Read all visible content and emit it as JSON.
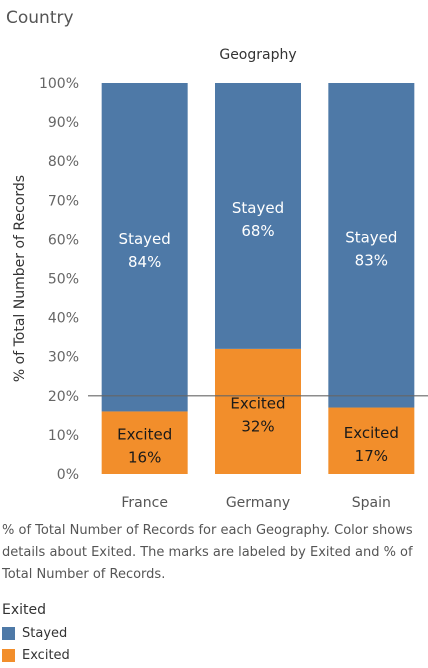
{
  "sheet_title": "Country",
  "caption": "% of Total Number of Records for each Geography.  Color shows details about Exited.  The marks are labeled by Exited and % of Total Number of Records.",
  "legend": {
    "title": "Exited",
    "items": [
      {
        "label": "Stayed",
        "color": "#4e79a7"
      },
      {
        "label": "Excited",
        "color": "#f28e2b"
      }
    ]
  },
  "chart_data": {
    "type": "bar",
    "stacked": true,
    "title": "Geography",
    "xlabel": "",
    "ylabel": "% of Total Number of Records",
    "categories": [
      "France",
      "Germany",
      "Spain"
    ],
    "series": [
      {
        "name": "Excited",
        "color": "#f28e2b",
        "values": [
          16,
          32,
          17
        ],
        "labels": [
          "16%",
          "32%",
          "17%"
        ]
      },
      {
        "name": "Stayed",
        "color": "#4e79a7",
        "values": [
          84,
          68,
          83
        ],
        "labels": [
          "84%",
          "68%",
          "83%"
        ]
      }
    ],
    "ylim": [
      0,
      100
    ],
    "yticks": [
      "0%",
      "10%",
      "20%",
      "30%",
      "40%",
      "50%",
      "60%",
      "70%",
      "80%",
      "90%",
      "100%"
    ],
    "reference_line": 20,
    "grid": false
  }
}
